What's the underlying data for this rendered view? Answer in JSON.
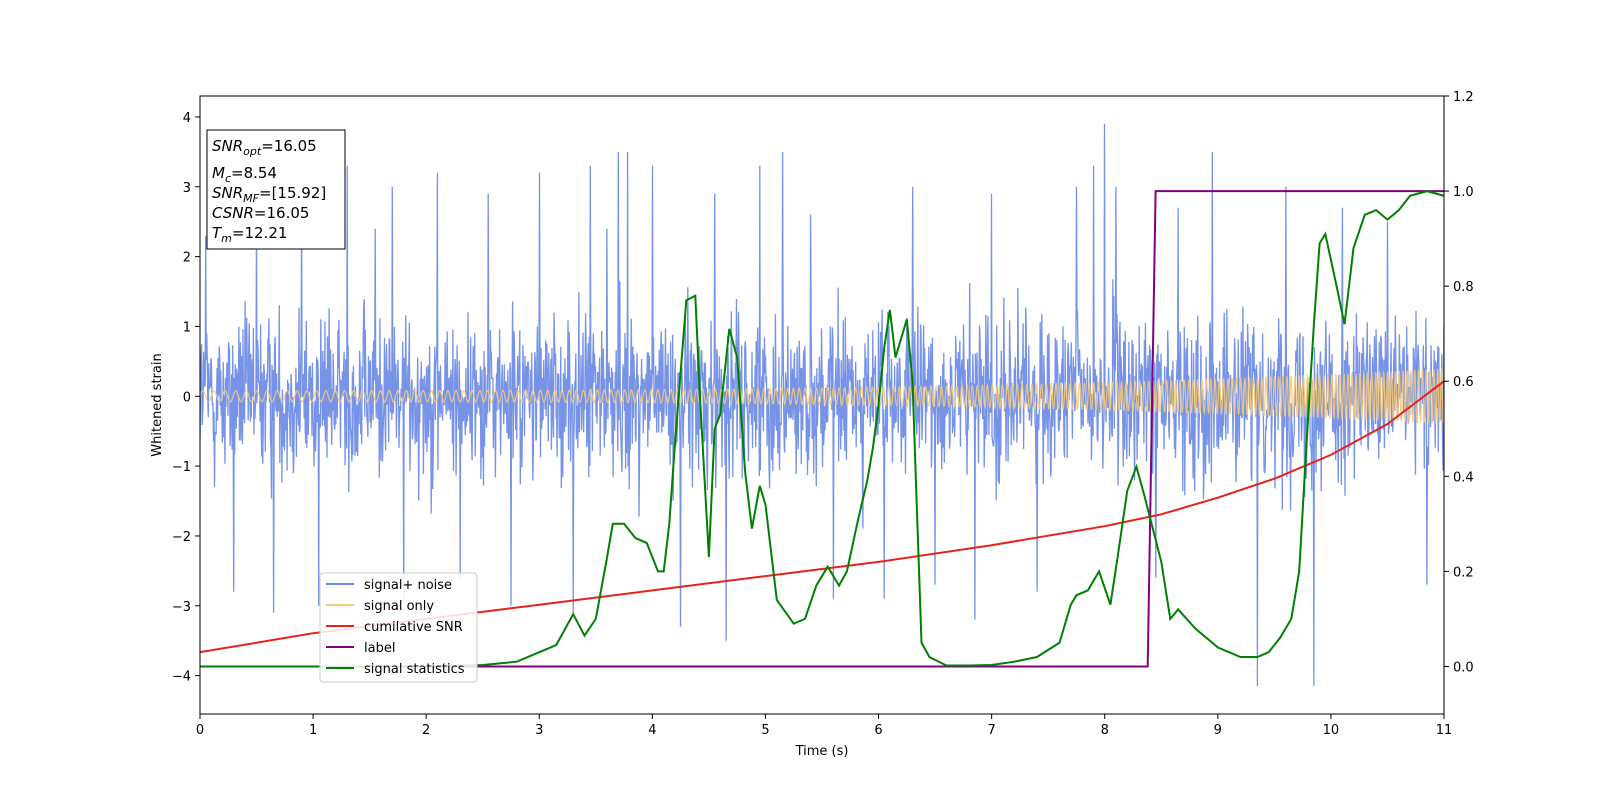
{
  "chart_data": {
    "type": "line",
    "xlabel": "Time (s)",
    "ylabel_left": "Whitened strain",
    "ylabel_right": "",
    "xlim": [
      0,
      11
    ],
    "ylim_left": [
      -4.55,
      4.3
    ],
    "ylim_right": [
      -0.1,
      1.2
    ],
    "x_ticks": [
      0,
      1,
      2,
      3,
      4,
      5,
      6,
      7,
      8,
      9,
      10,
      11
    ],
    "y_ticks_left": [
      -4,
      -3,
      -2,
      -1,
      0,
      1,
      2,
      3,
      4
    ],
    "y_ticks_right": [
      0.0,
      0.2,
      0.4,
      0.6,
      0.8,
      1.0,
      1.2
    ],
    "grid": false,
    "legend_position": "lower-left",
    "info_box": {
      "snr_opt": {
        "main": "SNR",
        "sub": "opt",
        "value": "=16.05"
      },
      "mc": {
        "main": "M",
        "sub": "c",
        "value": "=8.54"
      },
      "snr_mf": {
        "main": "SNR",
        "sub": "MF",
        "value": "=[15.92]"
      },
      "csnr": {
        "main": "CSNR",
        "sub": "",
        "value": "=16.05"
      },
      "tm": {
        "main": "T",
        "sub": "m",
        "value": "=12.21"
      }
    },
    "series": [
      {
        "name": "signal+ noise",
        "axis": "left",
        "color": "#6f8de6",
        "kind": "noise",
        "sigma": 0.95,
        "peak_values": [
          [
            0.05,
            2.3
          ],
          [
            0.3,
            -2.8
          ],
          [
            0.5,
            2.6
          ],
          [
            0.65,
            -3.1
          ],
          [
            0.9,
            2.5
          ],
          [
            1.05,
            -3.0
          ],
          [
            1.3,
            3.3
          ],
          [
            1.55,
            2.4
          ],
          [
            1.7,
            3.0
          ],
          [
            1.8,
            -2.9
          ],
          [
            2.1,
            3.2
          ],
          [
            2.3,
            -2.6
          ],
          [
            2.55,
            2.9
          ],
          [
            2.75,
            -3.0
          ],
          [
            3.0,
            3.2
          ],
          [
            3.3,
            -3.1
          ],
          [
            3.45,
            3.3
          ],
          [
            3.6,
            2.4
          ],
          [
            3.7,
            3.5
          ],
          [
            3.78,
            3.5
          ],
          [
            4.0,
            3.3
          ],
          [
            4.25,
            -3.3
          ],
          [
            4.55,
            2.9
          ],
          [
            4.65,
            -3.5
          ],
          [
            4.95,
            3.3
          ],
          [
            5.15,
            3.5
          ],
          [
            5.4,
            2.6
          ],
          [
            5.6,
            -2.9
          ],
          [
            6.05,
            -2.9
          ],
          [
            6.3,
            3.0
          ],
          [
            6.5,
            -2.7
          ],
          [
            6.85,
            -3.2
          ],
          [
            7.0,
            2.9
          ],
          [
            7.4,
            -2.8
          ],
          [
            7.75,
            3.0
          ],
          [
            7.9,
            3.3
          ],
          [
            8.0,
            3.9
          ],
          [
            8.1,
            3.0
          ],
          [
            8.45,
            -2.6
          ],
          [
            8.65,
            2.7
          ],
          [
            8.95,
            3.5
          ],
          [
            9.35,
            -4.15
          ],
          [
            9.6,
            3.0
          ],
          [
            9.85,
            -4.15
          ],
          [
            10.1,
            2.7
          ],
          [
            10.5,
            2.5
          ],
          [
            10.85,
            -2.7
          ]
        ]
      },
      {
        "name": "signal only",
        "axis": "left",
        "color": "#f5c97a",
        "kind": "chirp",
        "amplitude_start": 0.08,
        "amplitude_end": 0.4
      },
      {
        "name": "cumilative SNR",
        "axis": "right",
        "color": "#e8211a",
        "kind": "curve",
        "x": [
          0,
          1,
          2,
          3,
          4,
          5,
          6,
          7,
          8,
          8.5,
          9,
          9.5,
          10,
          10.5,
          11
        ],
        "y": [
          0.03,
          0.07,
          0.1,
          0.13,
          0.16,
          0.19,
          0.22,
          0.255,
          0.295,
          0.32,
          0.355,
          0.395,
          0.445,
          0.51,
          0.6
        ]
      },
      {
        "name": "label",
        "axis": "right",
        "color": "#800080",
        "kind": "step",
        "x": [
          0,
          8.38,
          8.45,
          11
        ],
        "y": [
          0,
          0,
          1,
          1
        ]
      },
      {
        "name": "signal statistics",
        "axis": "right",
        "color": "#008000",
        "kind": "curve",
        "x": [
          0,
          1,
          2,
          2.5,
          2.8,
          3.0,
          3.15,
          3.3,
          3.4,
          3.5,
          3.6,
          3.65,
          3.75,
          3.85,
          3.95,
          4.05,
          4.1,
          4.15,
          4.2,
          4.3,
          4.38,
          4.42,
          4.5,
          4.55,
          4.6,
          4.68,
          4.75,
          4.82,
          4.88,
          4.95,
          5.0,
          5.1,
          5.25,
          5.35,
          5.45,
          5.55,
          5.65,
          5.72,
          5.82,
          5.9,
          5.95,
          6.0,
          6.05,
          6.1,
          6.15,
          6.25,
          6.3,
          6.38,
          6.45,
          6.6,
          6.8,
          7.0,
          7.2,
          7.4,
          7.6,
          7.7,
          7.75,
          7.85,
          7.95,
          8.05,
          8.12,
          8.2,
          8.28,
          8.35,
          8.5,
          8.58,
          8.65,
          8.8,
          9.0,
          9.2,
          9.35,
          9.45,
          9.55,
          9.65,
          9.72,
          9.78,
          9.85,
          9.9,
          9.95,
          10.05,
          10.12,
          10.2,
          10.3,
          10.4,
          10.5,
          10.6,
          10.7,
          10.85,
          11
        ],
        "y": [
          0.0,
          0.0,
          0.0,
          0.003,
          0.01,
          0.03,
          0.045,
          0.11,
          0.065,
          0.1,
          0.23,
          0.3,
          0.3,
          0.27,
          0.26,
          0.2,
          0.2,
          0.3,
          0.47,
          0.77,
          0.78,
          0.57,
          0.23,
          0.5,
          0.53,
          0.71,
          0.65,
          0.41,
          0.29,
          0.38,
          0.34,
          0.14,
          0.09,
          0.1,
          0.17,
          0.21,
          0.17,
          0.2,
          0.31,
          0.39,
          0.46,
          0.55,
          0.67,
          0.75,
          0.65,
          0.73,
          0.6,
          0.05,
          0.02,
          0.002,
          0.002,
          0.003,
          0.01,
          0.02,
          0.05,
          0.13,
          0.15,
          0.16,
          0.2,
          0.13,
          0.24,
          0.37,
          0.42,
          0.36,
          0.22,
          0.1,
          0.12,
          0.08,
          0.04,
          0.02,
          0.02,
          0.03,
          0.06,
          0.1,
          0.2,
          0.45,
          0.72,
          0.89,
          0.91,
          0.8,
          0.72,
          0.88,
          0.95,
          0.96,
          0.94,
          0.96,
          0.99,
          1.0,
          0.99
        ]
      }
    ]
  }
}
